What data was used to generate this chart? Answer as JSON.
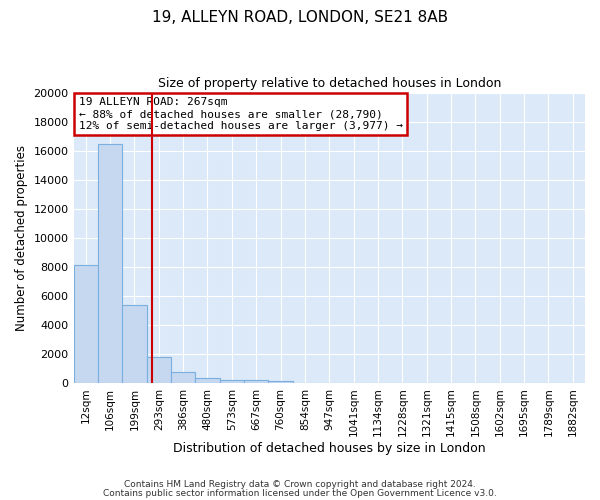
{
  "title1": "19, ALLEYN ROAD, LONDON, SE21 8AB",
  "title2": "Size of property relative to detached houses in London",
  "xlabel": "Distribution of detached houses by size in London",
  "ylabel": "Number of detached properties",
  "bar_color": "#c5d8f0",
  "bar_edge_color": "#7aafe0",
  "background_color": "#dce9f8",
  "grid_color": "#ffffff",
  "vline_color": "#cc0000",
  "vline_pos": 2.72,
  "annotation_title": "19 ALLEYN ROAD: 267sqm",
  "annotation_line1": "← 88% of detached houses are smaller (28,790)",
  "annotation_line2": "12% of semi-detached houses are larger (3,977) →",
  "annotation_box_color": "#cc0000",
  "footnote1": "Contains HM Land Registry data © Crown copyright and database right 2024.",
  "footnote2": "Contains public sector information licensed under the Open Government Licence v3.0.",
  "categories": [
    "12sqm",
    "106sqm",
    "199sqm",
    "293sqm",
    "386sqm",
    "480sqm",
    "573sqm",
    "667sqm",
    "760sqm",
    "854sqm",
    "947sqm",
    "1041sqm",
    "1134sqm",
    "1228sqm",
    "1321sqm",
    "1415sqm",
    "1508sqm",
    "1602sqm",
    "1695sqm",
    "1789sqm",
    "1882sqm"
  ],
  "values": [
    8100,
    16500,
    5350,
    1800,
    750,
    320,
    225,
    185,
    155,
    0,
    0,
    0,
    0,
    0,
    0,
    0,
    0,
    0,
    0,
    0,
    0
  ],
  "ylim": [
    0,
    20000
  ],
  "yticks": [
    0,
    2000,
    4000,
    6000,
    8000,
    10000,
    12000,
    14000,
    16000,
    18000,
    20000
  ],
  "fig_width": 6.0,
  "fig_height": 5.0,
  "dpi": 100
}
